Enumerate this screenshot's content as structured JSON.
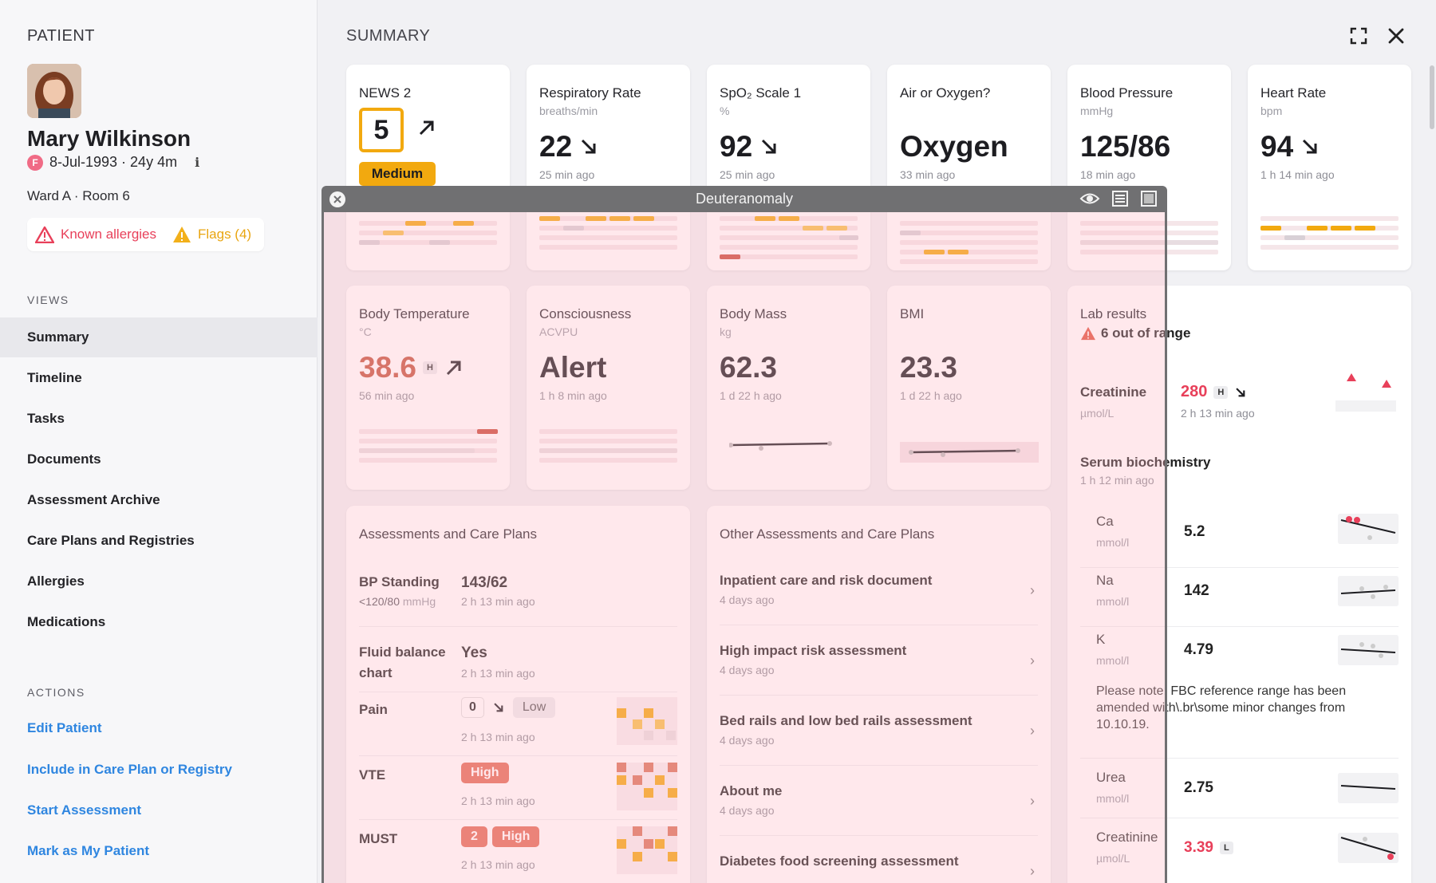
{
  "sidebar": {
    "heading": "PATIENT",
    "patient": {
      "name": "Mary Wilkinson",
      "sex_badge": "F",
      "dob_age": "8-Jul-1993 · 24y 4m",
      "info_symbol": "i",
      "ward": "Ward A · Room 6"
    },
    "alerts": {
      "allergies": "Known allergies",
      "flags": "Flags (4)"
    },
    "views_label": "VIEWS",
    "views": [
      "Summary",
      "Timeline",
      "Tasks",
      "Documents",
      "Assessment Archive",
      "Care Plans and Registries",
      "Allergies",
      "Medications"
    ],
    "active_view": "Summary",
    "actions_label": "ACTIONS",
    "actions": [
      "Edit Patient",
      "Include in Care Plan or Registry",
      "Start Assessment",
      "Mark as My Patient"
    ]
  },
  "main": {
    "heading": "SUMMARY",
    "icons": {
      "expand": "expand-icon",
      "close": "close-icon"
    }
  },
  "vitals": [
    {
      "title": "NEWS 2",
      "score": "5",
      "level": "Medium"
    },
    {
      "title": "Respiratory Rate",
      "unit": "breaths/min",
      "value": "22",
      "time": "25 min ago"
    },
    {
      "title": "SpO₂ Scale 1",
      "unit": "%",
      "value": "92",
      "time": "25 min ago"
    },
    {
      "title": "Air or Oxygen?",
      "value": "Oxygen",
      "time": "33 min ago"
    },
    {
      "title": "Blood Pressure",
      "unit": "mmHg",
      "value": "125/86",
      "time": "18 min ago"
    },
    {
      "title": "Heart Rate",
      "unit": "bpm",
      "value": "94",
      "time": "1 h 14 min ago"
    }
  ],
  "vitals2": [
    {
      "title": "Body Temperature",
      "unit": "°C",
      "value": "38.6",
      "flag": "H",
      "time": "56 min ago"
    },
    {
      "title": "Consciousness",
      "unit": "ACVPU",
      "value": "Alert",
      "time": "1 h 8 min ago"
    },
    {
      "title": "Body Mass",
      "unit": "kg",
      "value": "62.3",
      "time": "1 d 22 h ago"
    },
    {
      "title": "BMI",
      "value": "23.3",
      "time": "1 d 22 h ago"
    }
  ],
  "assessments": {
    "title": "Assessments and Care Plans",
    "bp": {
      "label": "BP Standing",
      "target": "<120/80",
      "unit": "mmHg",
      "value": "143/62",
      "time": "2 h 13 min ago"
    },
    "fluid": {
      "label_1": "Fluid balance",
      "label_2": "chart",
      "value": "Yes",
      "time": "2 h 13 min ago"
    },
    "pain": {
      "label": "Pain",
      "score": "0",
      "level": "Low",
      "time": "2 h 13 min ago"
    },
    "vte": {
      "label": "VTE",
      "level": "High",
      "time": "2 h 13 min ago"
    },
    "must": {
      "label": "MUST",
      "score": "2",
      "level": "High",
      "time": "2 h 13 min ago"
    }
  },
  "other_assessments": {
    "title": "Other Assessments and Care Plans",
    "items": [
      {
        "name": "Inpatient care and risk document",
        "time": "4 days ago"
      },
      {
        "name": "High impact risk assessment",
        "time": "4 days ago"
      },
      {
        "name": "Bed rails and low bed rails assessment",
        "time": "4 days ago"
      },
      {
        "name": "About me",
        "time": "4 days ago"
      },
      {
        "name": "Diabetes food screening assessment"
      }
    ]
  },
  "labs": {
    "title": "Lab results",
    "out_of_range": "6 out of range",
    "creatinine": {
      "name": "Creatinine",
      "unit": "µmol/L",
      "value": "280",
      "flag": "H",
      "time": "2 h 13 min ago"
    },
    "serum": {
      "name": "Serum biochemistry",
      "time": "1 h 12 min ago"
    },
    "rows": [
      {
        "name": "Ca",
        "unit": "mmol/l",
        "value": "5.2"
      },
      {
        "name": "Na",
        "unit": "mmol/l",
        "value": "142"
      },
      {
        "name": "K",
        "unit": "mmol/l",
        "value": "4.79"
      }
    ],
    "note": "Please note: FBC reference range has been amended with\\.br\\some minor changes from 10.10.19.",
    "rows2": [
      {
        "name": "Urea",
        "unit": "mmol/l",
        "value": "2.75"
      },
      {
        "name": "Creatinine",
        "unit": "µmol/L",
        "value": "3.39",
        "flag": "L"
      }
    ]
  },
  "overlay": {
    "title": "Deuteranomaly",
    "icons": [
      "eye-icon",
      "list-icon",
      "square-icon"
    ]
  },
  "colors": {
    "amber": "#f2a90f",
    "red": "#e8405a",
    "link": "#2f86e0",
    "high": "#e26b56"
  }
}
